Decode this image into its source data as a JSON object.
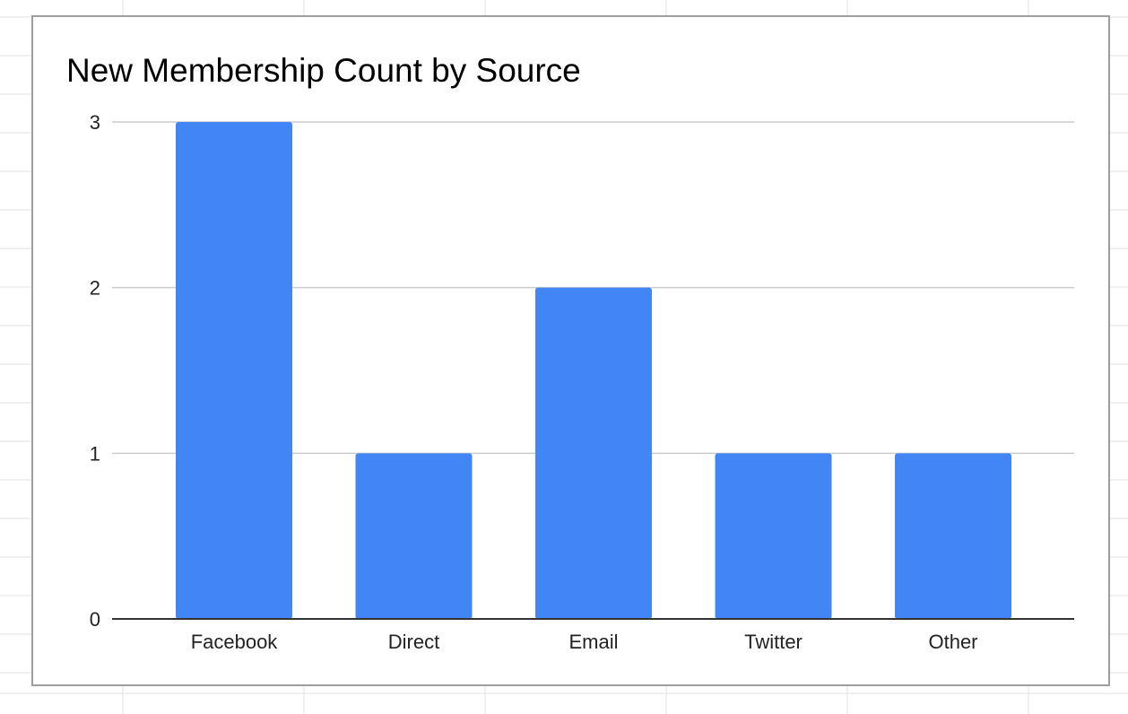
{
  "chart_data": {
    "type": "bar",
    "title": "New Membership Count by Source",
    "xlabel": "",
    "ylabel": "",
    "categories": [
      "Facebook",
      "Direct",
      "Email",
      "Twitter",
      "Other"
    ],
    "values": [
      3,
      1,
      2,
      1,
      1
    ],
    "ylim": [
      0,
      3
    ],
    "yticks": [
      "0",
      "1",
      "2",
      "3"
    ],
    "grid": true,
    "legend": "none",
    "bar_color": "#4285f4",
    "gridline_color": "#cccccc",
    "axis_color": "#333333"
  }
}
